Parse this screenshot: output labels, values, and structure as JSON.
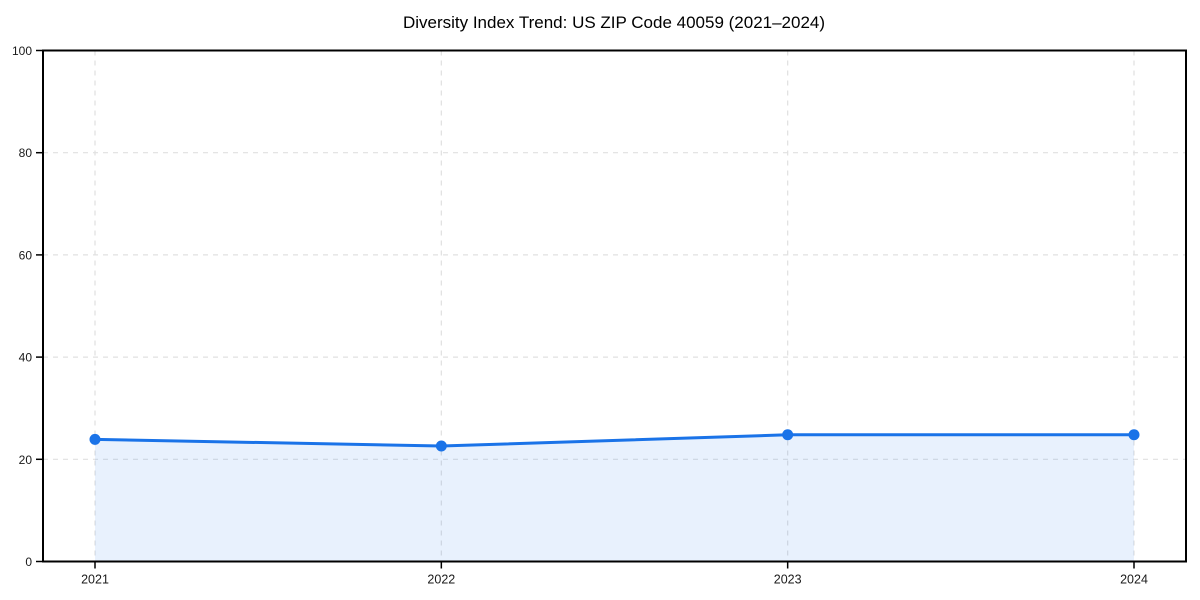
{
  "chart_data": {
    "type": "area",
    "title": "Diversity Index Trend: US ZIP Code 40059 (2021–2024)",
    "categories": [
      "2021",
      "2022",
      "2023",
      "2024"
    ],
    "series": [
      {
        "name": "Diversity Index",
        "values": [
          23.9,
          22.6,
          24.8,
          24.8
        ]
      }
    ],
    "xlabel": "",
    "ylabel": "",
    "ylim": [
      0,
      100
    ],
    "yticks": [
      0,
      20,
      40,
      60,
      80,
      100
    ],
    "grid": true,
    "grid_style": "dashed",
    "legend_position": "none",
    "colors": {
      "line": "#1a73e8",
      "marker": "#1a73e8",
      "fill": "rgba(26,115,232,0.10)",
      "grid": "#e0e0e0",
      "spine": "#000000",
      "tick_label": "#1a1a1a",
      "title": "#000000"
    }
  }
}
